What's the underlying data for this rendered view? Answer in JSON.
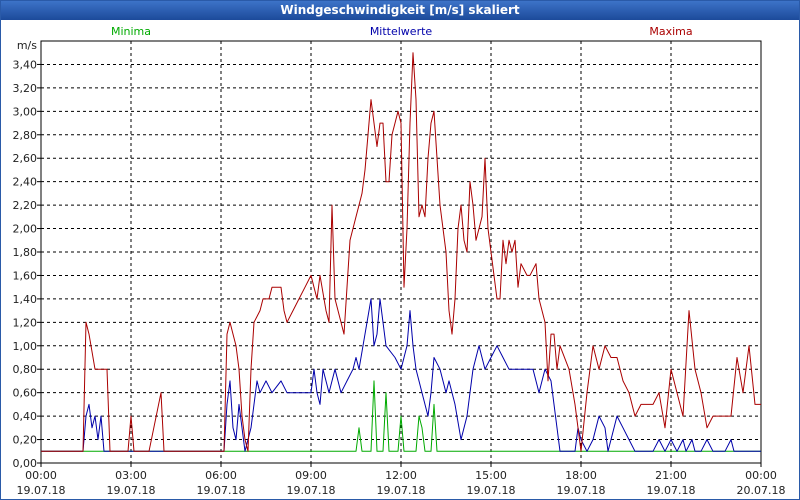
{
  "window": {
    "title": "Windgeschwindigkeit [m/s] skaliert"
  },
  "chart_data": {
    "type": "line",
    "title": "Windgeschwindigkeit [m/s] skaliert",
    "ylabel": "m/s",
    "xlabel": "",
    "ylim": [
      0,
      3.6
    ],
    "xlim": [
      0,
      24
    ],
    "grid": true,
    "legend_position": "top",
    "y_ticks": [
      "0,00",
      "0,20",
      "0,40",
      "0,60",
      "0,80",
      "1,00",
      "1,20",
      "1,40",
      "1,60",
      "1,80",
      "2,00",
      "2,20",
      "2,40",
      "2,60",
      "2,80",
      "3,00",
      "3,20",
      "3,40"
    ],
    "x_ticks": [
      {
        "time": "00:00",
        "date": "19.07.18"
      },
      {
        "time": "03:00",
        "date": "19.07.18"
      },
      {
        "time": "06:00",
        "date": "19.07.18"
      },
      {
        "time": "09:00",
        "date": "19.07.18"
      },
      {
        "time": "12:00",
        "date": "19.07.18"
      },
      {
        "time": "15:00",
        "date": "19.07.18"
      },
      {
        "time": "18:00",
        "date": "19.07.18"
      },
      {
        "time": "21:00",
        "date": "19.07.18"
      },
      {
        "time": "00:00",
        "date": "20.07.18"
      }
    ],
    "series": [
      {
        "name": "Minima",
        "color": "#00aa00",
        "points": [
          [
            0,
            0.1
          ],
          [
            10.5,
            0.1
          ],
          [
            10.6,
            0.3
          ],
          [
            10.7,
            0.1
          ],
          [
            11.0,
            0.1
          ],
          [
            11.1,
            0.7
          ],
          [
            11.2,
            0.1
          ],
          [
            11.4,
            0.1
          ],
          [
            11.5,
            0.6
          ],
          [
            11.6,
            0.1
          ],
          [
            11.9,
            0.1
          ],
          [
            12.0,
            0.4
          ],
          [
            12.1,
            0.1
          ],
          [
            12.5,
            0.1
          ],
          [
            12.6,
            0.4
          ],
          [
            12.7,
            0.3
          ],
          [
            12.8,
            0.1
          ],
          [
            13.0,
            0.1
          ],
          [
            13.1,
            0.5
          ],
          [
            13.2,
            0.1
          ],
          [
            24,
            0.1
          ]
        ]
      },
      {
        "name": "Mittelwerte",
        "color": "#0000aa",
        "points": [
          [
            0,
            0.1
          ],
          [
            1.4,
            0.1
          ],
          [
            1.5,
            0.4
          ],
          [
            1.6,
            0.5
          ],
          [
            1.7,
            0.3
          ],
          [
            1.8,
            0.4
          ],
          [
            1.9,
            0.2
          ],
          [
            2.0,
            0.4
          ],
          [
            2.1,
            0.1
          ],
          [
            6.1,
            0.1
          ],
          [
            6.2,
            0.5
          ],
          [
            6.3,
            0.7
          ],
          [
            6.4,
            0.3
          ],
          [
            6.5,
            0.2
          ],
          [
            6.6,
            0.5
          ],
          [
            6.7,
            0.3
          ],
          [
            6.8,
            0.1
          ],
          [
            7.0,
            0.3
          ],
          [
            7.2,
            0.7
          ],
          [
            7.3,
            0.6
          ],
          [
            7.5,
            0.7
          ],
          [
            7.7,
            0.6
          ],
          [
            8.0,
            0.7
          ],
          [
            8.2,
            0.6
          ],
          [
            9.0,
            0.6
          ],
          [
            9.1,
            0.8
          ],
          [
            9.2,
            0.6
          ],
          [
            9.3,
            0.5
          ],
          [
            9.4,
            0.8
          ],
          [
            9.6,
            0.6
          ],
          [
            9.8,
            0.8
          ],
          [
            10.0,
            0.6
          ],
          [
            10.2,
            0.7
          ],
          [
            10.4,
            0.8
          ],
          [
            10.5,
            0.9
          ],
          [
            10.6,
            0.8
          ],
          [
            10.8,
            1.1
          ],
          [
            11.0,
            1.4
          ],
          [
            11.1,
            1.0
          ],
          [
            11.2,
            1.1
          ],
          [
            11.3,
            1.4
          ],
          [
            11.4,
            1.2
          ],
          [
            11.5,
            1.0
          ],
          [
            11.8,
            0.9
          ],
          [
            12.0,
            0.8
          ],
          [
            12.2,
            1.0
          ],
          [
            12.3,
            1.3
          ],
          [
            12.4,
            1.0
          ],
          [
            12.5,
            0.8
          ],
          [
            12.7,
            0.6
          ],
          [
            12.9,
            0.4
          ],
          [
            13.0,
            0.6
          ],
          [
            13.1,
            0.9
          ],
          [
            13.3,
            0.8
          ],
          [
            13.5,
            0.6
          ],
          [
            13.6,
            0.7
          ],
          [
            13.8,
            0.5
          ],
          [
            14.0,
            0.2
          ],
          [
            14.2,
            0.4
          ],
          [
            14.4,
            0.8
          ],
          [
            14.6,
            1.0
          ],
          [
            14.8,
            0.8
          ],
          [
            15.0,
            0.9
          ],
          [
            15.2,
            1.0
          ],
          [
            15.4,
            0.9
          ],
          [
            15.6,
            0.8
          ],
          [
            16.4,
            0.8
          ],
          [
            16.6,
            0.6
          ],
          [
            16.8,
            0.8
          ],
          [
            17.0,
            0.7
          ],
          [
            17.2,
            0.3
          ],
          [
            17.3,
            0.1
          ],
          [
            17.8,
            0.1
          ],
          [
            17.9,
            0.3
          ],
          [
            18.0,
            0.2
          ],
          [
            18.2,
            0.1
          ],
          [
            18.4,
            0.2
          ],
          [
            18.6,
            0.4
          ],
          [
            18.8,
            0.3
          ],
          [
            18.9,
            0.1
          ],
          [
            19.0,
            0.2
          ],
          [
            19.2,
            0.4
          ],
          [
            19.4,
            0.3
          ],
          [
            19.6,
            0.2
          ],
          [
            19.8,
            0.1
          ],
          [
            20.0,
            0.1
          ],
          [
            20.4,
            0.1
          ],
          [
            20.6,
            0.2
          ],
          [
            20.8,
            0.1
          ],
          [
            21.0,
            0.2
          ],
          [
            21.2,
            0.1
          ],
          [
            21.4,
            0.2
          ],
          [
            21.5,
            0.1
          ],
          [
            21.7,
            0.2
          ],
          [
            21.8,
            0.1
          ],
          [
            22.0,
            0.1
          ],
          [
            22.2,
            0.2
          ],
          [
            22.4,
            0.1
          ],
          [
            22.6,
            0.1
          ],
          [
            22.8,
            0.1
          ],
          [
            23.0,
            0.2
          ],
          [
            23.1,
            0.1
          ],
          [
            24,
            0.1
          ]
        ]
      },
      {
        "name": "Maxima",
        "color": "#aa0000",
        "points": [
          [
            0,
            0.1
          ],
          [
            1.4,
            0.1
          ],
          [
            1.5,
            1.2
          ],
          [
            1.6,
            1.1
          ],
          [
            1.8,
            0.8
          ],
          [
            2.2,
            0.8
          ],
          [
            2.3,
            0.1
          ],
          [
            2.9,
            0.1
          ],
          [
            3.0,
            0.4
          ],
          [
            3.1,
            0.1
          ],
          [
            3.6,
            0.1
          ],
          [
            4.0,
            0.6
          ],
          [
            4.1,
            0.1
          ],
          [
            6.1,
            0.1
          ],
          [
            6.2,
            1.1
          ],
          [
            6.3,
            1.2
          ],
          [
            6.4,
            1.1
          ],
          [
            6.5,
            1.0
          ],
          [
            6.6,
            0.8
          ],
          [
            6.7,
            0.4
          ],
          [
            6.8,
            0.2
          ],
          [
            6.9,
            0.1
          ],
          [
            7.0,
            0.8
          ],
          [
            7.1,
            1.2
          ],
          [
            7.3,
            1.3
          ],
          [
            7.4,
            1.4
          ],
          [
            7.6,
            1.4
          ],
          [
            7.7,
            1.5
          ],
          [
            8.0,
            1.5
          ],
          [
            8.1,
            1.3
          ],
          [
            8.2,
            1.2
          ],
          [
            8.4,
            1.3
          ],
          [
            8.6,
            1.4
          ],
          [
            8.8,
            1.5
          ],
          [
            9.0,
            1.6
          ],
          [
            9.1,
            1.5
          ],
          [
            9.2,
            1.4
          ],
          [
            9.3,
            1.6
          ],
          [
            9.5,
            1.3
          ],
          [
            9.6,
            1.2
          ],
          [
            9.7,
            2.2
          ],
          [
            9.8,
            1.4
          ],
          [
            10.0,
            1.2
          ],
          [
            10.1,
            1.1
          ],
          [
            10.2,
            1.5
          ],
          [
            10.3,
            1.9
          ],
          [
            10.5,
            2.1
          ],
          [
            10.6,
            2.2
          ],
          [
            10.7,
            2.3
          ],
          [
            10.8,
            2.5
          ],
          [
            10.9,
            2.8
          ],
          [
            11.0,
            3.1
          ],
          [
            11.1,
            2.9
          ],
          [
            11.2,
            2.7
          ],
          [
            11.3,
            2.9
          ],
          [
            11.4,
            2.9
          ],
          [
            11.5,
            2.4
          ],
          [
            11.6,
            2.4
          ],
          [
            11.7,
            2.8
          ],
          [
            11.8,
            2.9
          ],
          [
            11.9,
            3.0
          ],
          [
            12.0,
            2.9
          ],
          [
            12.1,
            1.5
          ],
          [
            12.2,
            2.0
          ],
          [
            12.3,
            2.9
          ],
          [
            12.4,
            3.5
          ],
          [
            12.5,
            3.1
          ],
          [
            12.6,
            2.1
          ],
          [
            12.7,
            2.2
          ],
          [
            12.8,
            2.1
          ],
          [
            12.9,
            2.6
          ],
          [
            13.0,
            2.9
          ],
          [
            13.1,
            3.0
          ],
          [
            13.2,
            2.6
          ],
          [
            13.3,
            2.2
          ],
          [
            13.4,
            2.0
          ],
          [
            13.5,
            1.8
          ],
          [
            13.6,
            1.3
          ],
          [
            13.7,
            1.1
          ],
          [
            13.8,
            1.4
          ],
          [
            13.9,
            2.0
          ],
          [
            14.0,
            2.2
          ],
          [
            14.1,
            1.9
          ],
          [
            14.2,
            1.8
          ],
          [
            14.3,
            2.4
          ],
          [
            14.4,
            2.2
          ],
          [
            14.5,
            1.9
          ],
          [
            14.6,
            2.0
          ],
          [
            14.7,
            2.1
          ],
          [
            14.8,
            2.6
          ],
          [
            14.9,
            2.0
          ],
          [
            15.0,
            1.8
          ],
          [
            15.2,
            1.4
          ],
          [
            15.3,
            1.4
          ],
          [
            15.4,
            1.9
          ],
          [
            15.5,
            1.7
          ],
          [
            15.6,
            1.9
          ],
          [
            15.7,
            1.8
          ],
          [
            15.8,
            1.9
          ],
          [
            15.9,
            1.5
          ],
          [
            16.0,
            1.7
          ],
          [
            16.2,
            1.6
          ],
          [
            16.3,
            1.6
          ],
          [
            16.5,
            1.7
          ],
          [
            16.6,
            1.4
          ],
          [
            16.8,
            1.2
          ],
          [
            16.9,
            0.7
          ],
          [
            17.0,
            1.1
          ],
          [
            17.1,
            1.1
          ],
          [
            17.2,
            0.8
          ],
          [
            17.3,
            1.0
          ],
          [
            17.6,
            0.8
          ],
          [
            17.8,
            0.5
          ],
          [
            18.0,
            0.1
          ],
          [
            18.2,
            0.6
          ],
          [
            18.4,
            1.0
          ],
          [
            18.6,
            0.8
          ],
          [
            18.8,
            1.0
          ],
          [
            19.0,
            0.9
          ],
          [
            19.2,
            0.9
          ],
          [
            19.4,
            0.7
          ],
          [
            19.6,
            0.6
          ],
          [
            19.8,
            0.4
          ],
          [
            20.0,
            0.5
          ],
          [
            20.4,
            0.5
          ],
          [
            20.6,
            0.6
          ],
          [
            20.8,
            0.3
          ],
          [
            21.0,
            0.8
          ],
          [
            21.2,
            0.6
          ],
          [
            21.4,
            0.4
          ],
          [
            21.6,
            1.3
          ],
          [
            21.8,
            0.8
          ],
          [
            22.0,
            0.6
          ],
          [
            22.2,
            0.3
          ],
          [
            22.4,
            0.4
          ],
          [
            22.8,
            0.4
          ],
          [
            23.0,
            0.4
          ],
          [
            23.2,
            0.9
          ],
          [
            23.4,
            0.6
          ],
          [
            23.6,
            1.0
          ],
          [
            23.8,
            0.5
          ],
          [
            24,
            0.5
          ]
        ]
      }
    ]
  }
}
